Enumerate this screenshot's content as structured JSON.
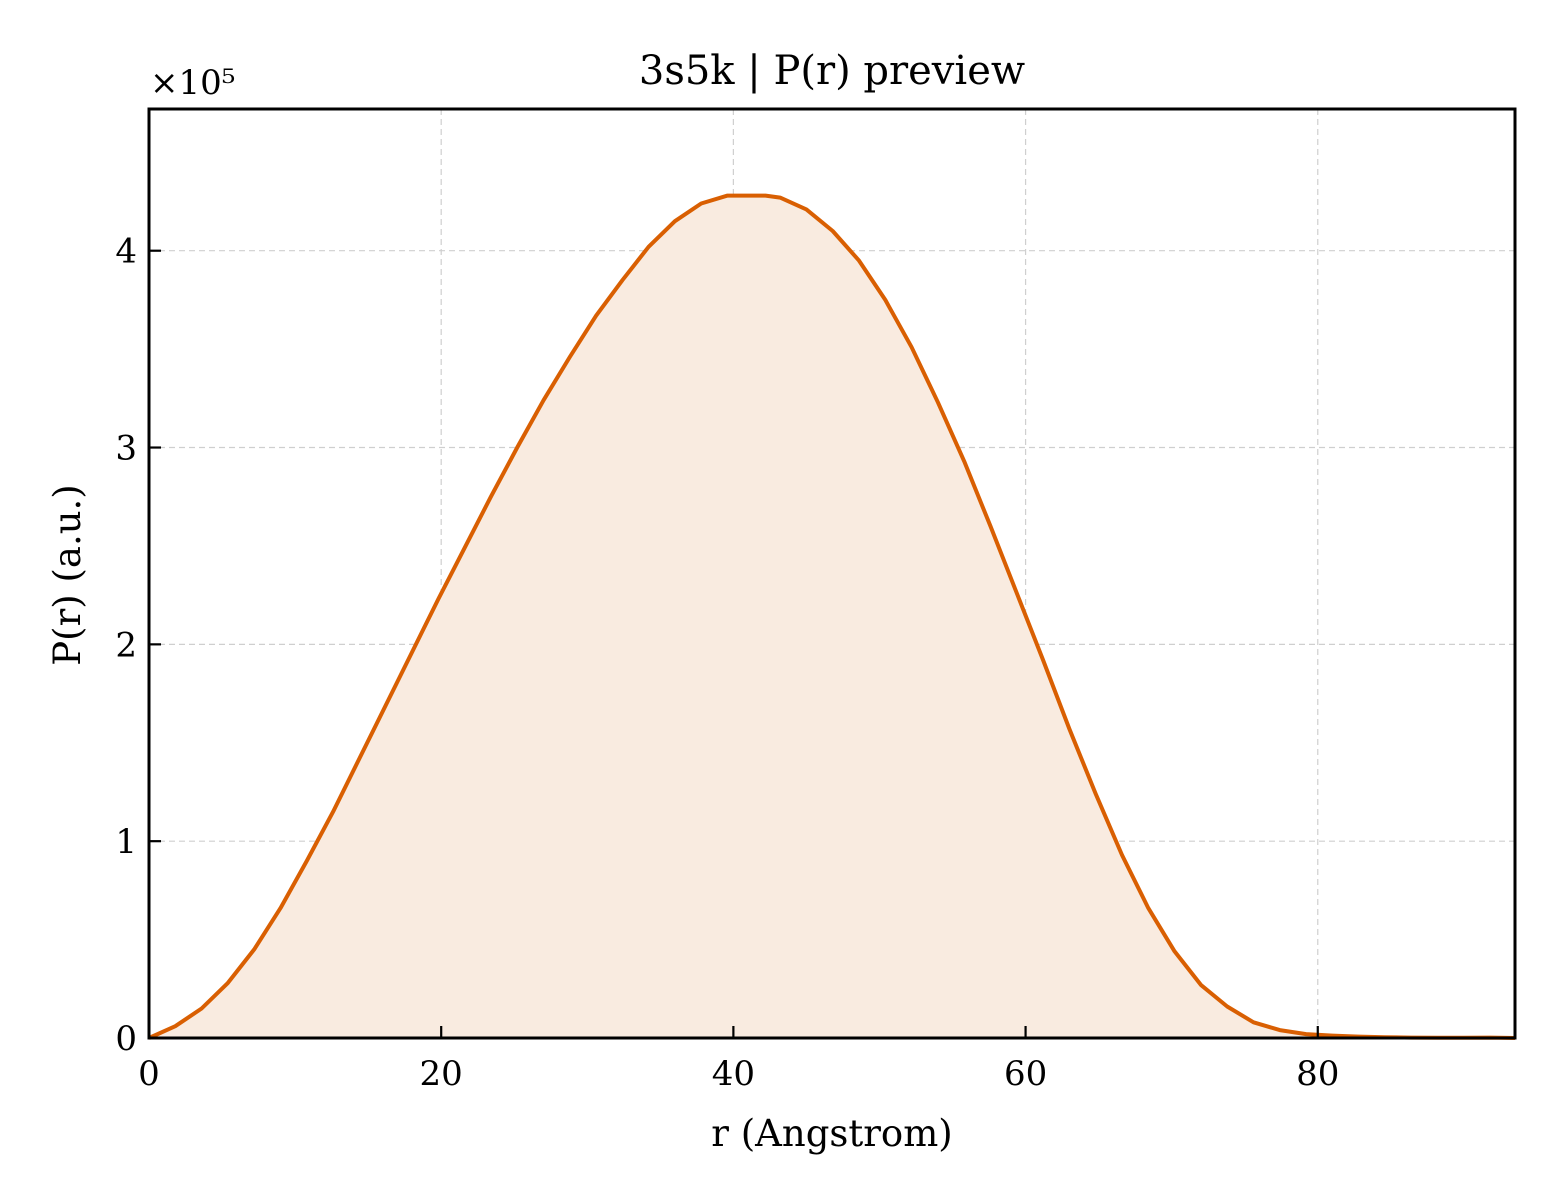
{
  "chart_data": {
    "type": "area",
    "title": "3s5k | P(r) preview",
    "xlabel": "r (Angstrom)",
    "ylabel": "P(r) (a.u.)",
    "y_multiplier": "×10⁵",
    "xlim": [
      0,
      93.5
    ],
    "ylim": [
      0,
      4.72
    ],
    "y_scale_factor": 100000,
    "xticks": [
      0,
      20,
      40,
      60,
      80
    ],
    "yticks": [
      0,
      1,
      2,
      3,
      4
    ],
    "grid": true,
    "line_color": "#d95f02",
    "fill_color": "#f9ebe0",
    "series": [
      {
        "x": [
          0,
          1.8,
          3.6,
          5.4,
          7.2,
          9.0,
          10.8,
          12.6,
          14.4,
          16.2,
          18.0,
          19.8,
          21.6,
          23.4,
          25.2,
          27.0,
          28.8,
          30.6,
          32.4,
          34.2,
          36.0,
          37.8,
          39.6,
          41.4,
          42.2,
          43.2,
          45.0,
          46.8,
          48.6,
          50.4,
          52.2,
          54.0,
          55.8,
          57.6,
          59.4,
          61.2,
          63.0,
          64.8,
          66.6,
          68.4,
          70.2,
          72.0,
          73.8,
          75.6,
          77.4,
          79.2,
          81.0,
          82.8,
          84.6,
          86.4,
          88.2,
          90.0,
          91.8,
          93.5
        ],
        "y": [
          0.0,
          0.06,
          0.15,
          0.28,
          0.45,
          0.66,
          0.9,
          1.15,
          1.42,
          1.69,
          1.96,
          2.23,
          2.49,
          2.75,
          3.0,
          3.24,
          3.46,
          3.67,
          3.85,
          4.02,
          4.15,
          4.24,
          4.28,
          4.28,
          4.28,
          4.27,
          4.21,
          4.1,
          3.95,
          3.75,
          3.51,
          3.23,
          2.93,
          2.6,
          2.26,
          1.92,
          1.57,
          1.24,
          0.93,
          0.66,
          0.44,
          0.27,
          0.16,
          0.08,
          0.04,
          0.02,
          0.012,
          0.007,
          0.004,
          0.002,
          0.001,
          0.001,
          0.002,
          0.0
        ]
      }
    ]
  }
}
